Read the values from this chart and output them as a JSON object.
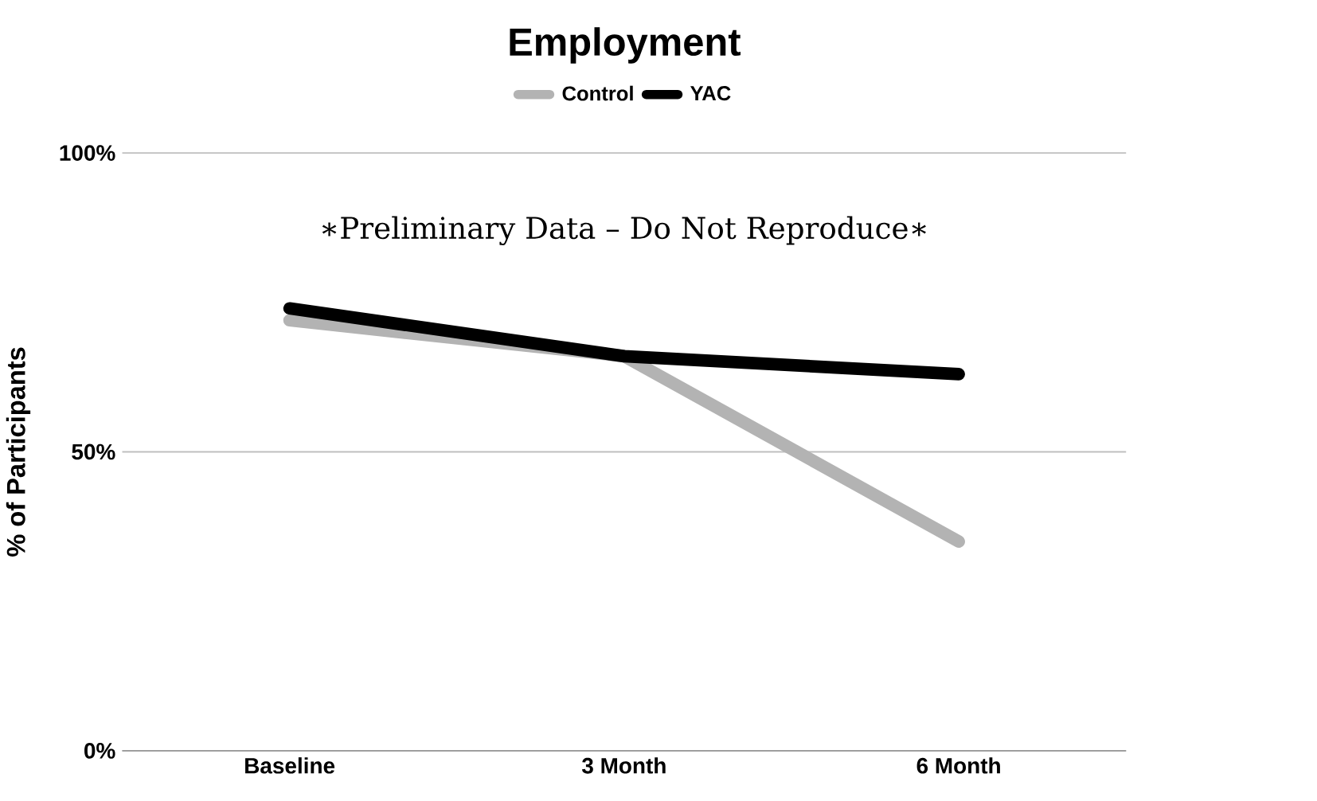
{
  "chart_data": {
    "type": "line",
    "title": "Employment",
    "ylabel": "% of Participants",
    "categories": [
      "Baseline",
      "3 Month",
      "6 Month"
    ],
    "series": [
      {
        "name": "Control",
        "color": "#b3b3b3",
        "values": [
          72,
          66,
          35
        ]
      },
      {
        "name": "YAC",
        "color": "#000000",
        "values": [
          74,
          66,
          63
        ]
      }
    ],
    "ylim": [
      0,
      100
    ],
    "yticks": [
      {
        "value": 0,
        "label": "0%"
      },
      {
        "value": 50,
        "label": "50%"
      },
      {
        "value": 100,
        "label": "100%"
      }
    ],
    "grid": "y",
    "legend": "top",
    "marker": "none",
    "line_style": "solid",
    "annotations": [
      "∗Preliminary Data – Do Not Reproduce∗"
    ]
  }
}
